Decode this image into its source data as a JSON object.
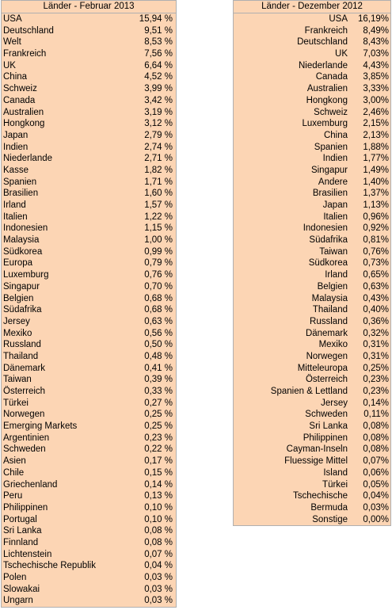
{
  "left": {
    "title": "Länder - Februar 2013",
    "rows": [
      {
        "name": "USA",
        "value": "15,94 %"
      },
      {
        "name": "Deutschland",
        "value": "9,51 %"
      },
      {
        "name": "Welt",
        "value": "8,53 %"
      },
      {
        "name": "Frankreich",
        "value": "7,56 %"
      },
      {
        "name": "UK",
        "value": "6,64 %"
      },
      {
        "name": "China",
        "value": "4,52 %"
      },
      {
        "name": "Schweiz",
        "value": "3,99 %"
      },
      {
        "name": "Canada",
        "value": "3,42 %"
      },
      {
        "name": "Australien",
        "value": "3,19 %"
      },
      {
        "name": "Hongkong",
        "value": "3,12 %"
      },
      {
        "name": "Japan",
        "value": "2,79 %"
      },
      {
        "name": "Indien",
        "value": "2,74 %"
      },
      {
        "name": "Niederlande",
        "value": "2,71 %"
      },
      {
        "name": "Kasse",
        "value": "1,82 %"
      },
      {
        "name": "Spanien",
        "value": "1,71 %"
      },
      {
        "name": "Brasilien",
        "value": "1,60 %"
      },
      {
        "name": "Irland",
        "value": "1,57 %"
      },
      {
        "name": "Italien",
        "value": "1,22 %"
      },
      {
        "name": "Indonesien",
        "value": "1,15 %"
      },
      {
        "name": "Malaysia",
        "value": "1,00 %"
      },
      {
        "name": "Südkorea",
        "value": "0,99 %"
      },
      {
        "name": "Europa",
        "value": "0,79 %"
      },
      {
        "name": "Luxemburg",
        "value": "0,76 %"
      },
      {
        "name": "Singapur",
        "value": "0,70 %"
      },
      {
        "name": "Belgien",
        "value": "0,68 %"
      },
      {
        "name": "Südafrika",
        "value": "0,68 %"
      },
      {
        "name": "Jersey",
        "value": "0,63 %"
      },
      {
        "name": "Mexiko",
        "value": "0,56 %"
      },
      {
        "name": "Russland",
        "value": "0,50 %"
      },
      {
        "name": "Thailand",
        "value": "0,48 %"
      },
      {
        "name": "Dänemark",
        "value": "0,41 %"
      },
      {
        "name": "Taiwan",
        "value": "0,39 %"
      },
      {
        "name": "Österreich",
        "value": "0,33 %"
      },
      {
        "name": "Türkei",
        "value": "0,27 %"
      },
      {
        "name": "Norwegen",
        "value": "0,25 %"
      },
      {
        "name": "Emerging Markets",
        "value": "0,25 %"
      },
      {
        "name": "Argentinien",
        "value": "0,23 %"
      },
      {
        "name": "Schweden",
        "value": "0,22 %"
      },
      {
        "name": "Asien",
        "value": "0,17 %"
      },
      {
        "name": "Chile",
        "value": "0,15 %"
      },
      {
        "name": "Griechenland",
        "value": "0,14 %"
      },
      {
        "name": "Peru",
        "value": "0,13 %"
      },
      {
        "name": "Philippinen",
        "value": "0,10 %"
      },
      {
        "name": "Portugal",
        "value": "0,10 %"
      },
      {
        "name": "Sri Lanka",
        "value": "0,08 %"
      },
      {
        "name": "Finnland",
        "value": "0,08 %"
      },
      {
        "name": "Lichtenstein",
        "value": "0,07 %"
      },
      {
        "name": "Tschechische Republik",
        "value": "0,04 %"
      },
      {
        "name": "Polen",
        "value": "0,03 %"
      },
      {
        "name": "Slowakai",
        "value": "0,03 %"
      },
      {
        "name": "Ungarn",
        "value": "0,03 %"
      }
    ]
  },
  "right": {
    "title": "Länder - Dezember 2012",
    "rows": [
      {
        "name": "USA",
        "value": "16,19%"
      },
      {
        "name": "Frankreich",
        "value": "8,49%"
      },
      {
        "name": "Deutschland",
        "value": "8,43%"
      },
      {
        "name": "UK",
        "value": "7,03%"
      },
      {
        "name": "Niederlande",
        "value": "4,43%"
      },
      {
        "name": "Canada",
        "value": "3,85%"
      },
      {
        "name": "Australien",
        "value": "3,33%"
      },
      {
        "name": "Hongkong",
        "value": "3,00%"
      },
      {
        "name": "Schweiz",
        "value": "2,46%"
      },
      {
        "name": "Luxemburg",
        "value": "2,15%"
      },
      {
        "name": "China",
        "value": "2,13%"
      },
      {
        "name": "Spanien",
        "value": "1,88%"
      },
      {
        "name": "Indien",
        "value": "1,77%"
      },
      {
        "name": "Singapur",
        "value": "1,49%"
      },
      {
        "name": "Andere",
        "value": "1,40%"
      },
      {
        "name": "Brasilien",
        "value": "1,37%"
      },
      {
        "name": "Japan",
        "value": "1,13%"
      },
      {
        "name": "Italien",
        "value": "0,96%"
      },
      {
        "name": "Indonesien",
        "value": "0,92%"
      },
      {
        "name": "Südafrika",
        "value": "0,81%"
      },
      {
        "name": "Taiwan",
        "value": "0,76%"
      },
      {
        "name": "Südkorea",
        "value": "0,73%"
      },
      {
        "name": "Irland",
        "value": "0,65%"
      },
      {
        "name": "Belgien",
        "value": "0,63%"
      },
      {
        "name": "Malaysia",
        "value": "0,43%"
      },
      {
        "name": "Thailand",
        "value": "0,40%"
      },
      {
        "name": "Russland",
        "value": "0,36%"
      },
      {
        "name": "Dänemark",
        "value": "0,32%"
      },
      {
        "name": "Mexiko",
        "value": "0,31%"
      },
      {
        "name": "Norwegen",
        "value": "0,31%"
      },
      {
        "name": "Mitteleuropa",
        "value": "0,25%"
      },
      {
        "name": "Österreich",
        "value": "0,23%"
      },
      {
        "name": "Spanien & Lettland",
        "value": "0,23%"
      },
      {
        "name": "Jersey",
        "value": "0,14%"
      },
      {
        "name": "Schweden",
        "value": "0,11%"
      },
      {
        "name": "Sri Lanka",
        "value": "0,08%"
      },
      {
        "name": "Philippinen",
        "value": "0,08%"
      },
      {
        "name": "Cayman-Inseln",
        "value": "0,08%"
      },
      {
        "name": "Fluessige Mittel",
        "value": "0,07%"
      },
      {
        "name": "Island",
        "value": "0,06%"
      },
      {
        "name": "Türkei",
        "value": "0,05%"
      },
      {
        "name": "Tschechische",
        "value": "0,04%"
      },
      {
        "name": "Bermuda",
        "value": "0,03%"
      },
      {
        "name": "Sonstige",
        "value": "0,00%"
      }
    ]
  }
}
